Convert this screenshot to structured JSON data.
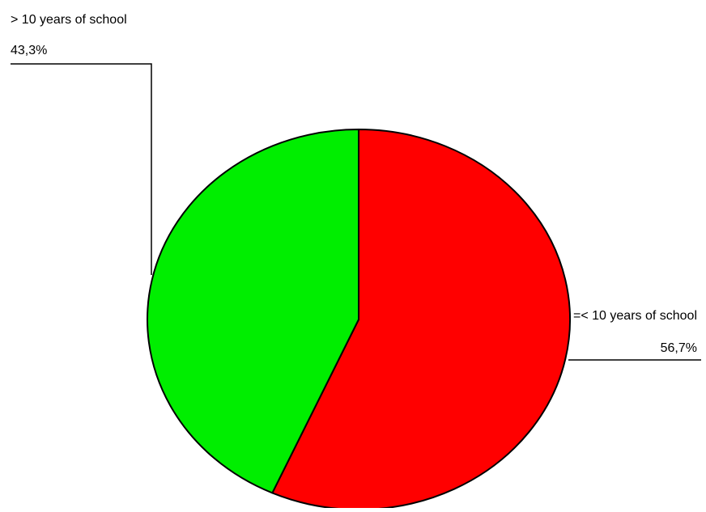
{
  "chart_data": {
    "type": "pie",
    "title": "",
    "slices": [
      {
        "label": "=< 10 years of school",
        "value": 56.7,
        "value_label": "56,7%",
        "color": "#ff0000"
      },
      {
        "label": "> 10 years of school",
        "value": 43.3,
        "value_label": "43,3%",
        "color": "#00ee00"
      }
    ],
    "legend": "none"
  }
}
